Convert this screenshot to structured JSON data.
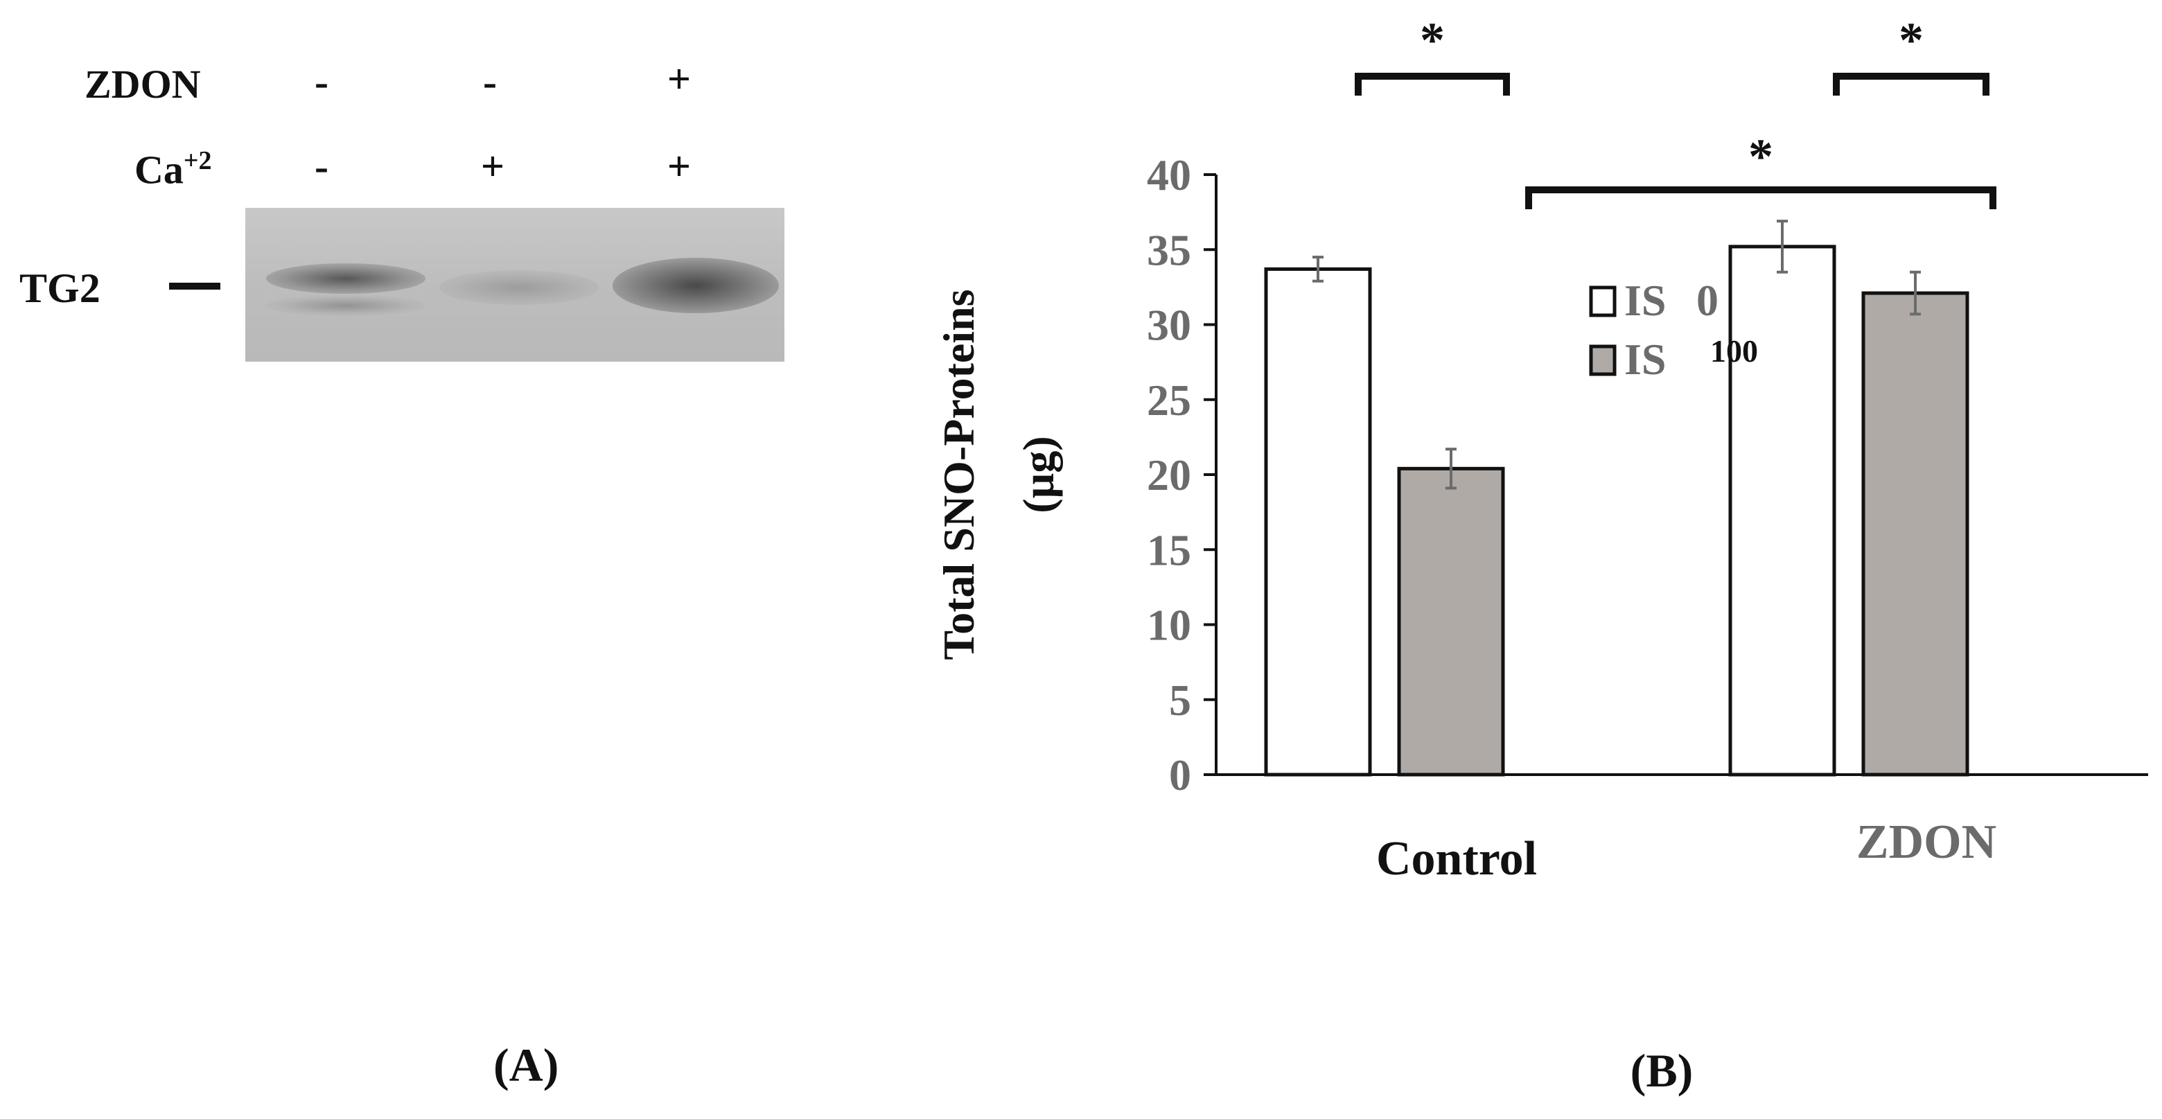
{
  "panel_a": {
    "label_open": "(",
    "label_letter": "A",
    "label_close": ")",
    "rows": [
      {
        "label": "ZDON",
        "signs": [
          "-",
          "-",
          "+"
        ]
      },
      {
        "label": "Ca",
        "superscript": "+2",
        "signs": [
          "-",
          "+",
          "+"
        ]
      }
    ],
    "band_label": "TG2",
    "band_intensity": [
      0.55,
      0.3,
      0.85
    ]
  },
  "chart_data": {
    "type": "bar",
    "categories": [
      "Control",
      "ZDON"
    ],
    "ylabel_line1": "Total SNO-Proteins",
    "ylabel_line2": "(µg)",
    "ylim": [
      0,
      40
    ],
    "yticks": [
      0,
      5,
      10,
      15,
      20,
      25,
      30,
      35,
      40
    ],
    "legend_position": "center",
    "series": [
      {
        "name": "IS 0",
        "name_main": "IS",
        "name_suffix": "0",
        "color": "#ffffff",
        "values": [
          33.7,
          35.2
        ],
        "errors": [
          0.8,
          1.7
        ]
      },
      {
        "name": "IS 100",
        "name_main": "IS",
        "name_suffix": "100",
        "color": "#b0aaa6",
        "values": [
          20.4,
          32.1
        ],
        "errors": [
          1.3,
          1.4
        ]
      }
    ],
    "significance": [
      {
        "text": "*",
        "from": "Control/IS 0",
        "to": "Control/IS 100"
      },
      {
        "text": "*",
        "from": "ZDON/IS 0",
        "to": "ZDON/IS 100"
      },
      {
        "text": "*",
        "from": "Control/IS 100",
        "to": "ZDON/IS 100"
      }
    ],
    "panel_label_open": "(",
    "panel_label_letter": "B",
    "panel_label_close": ")"
  }
}
